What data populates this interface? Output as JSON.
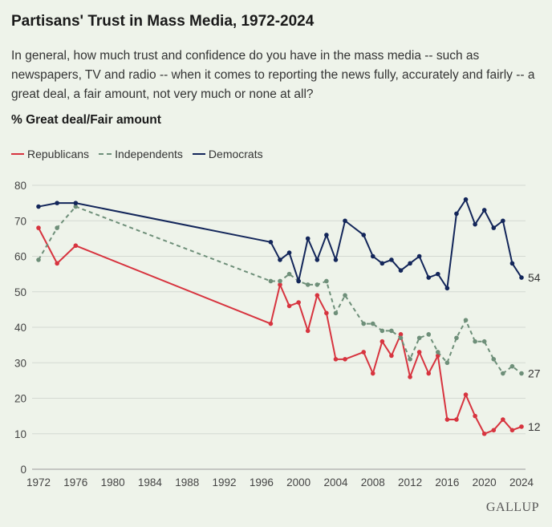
{
  "chart_data": {
    "type": "line",
    "title": "Partisans' Trust in Mass Media, 1972-2024",
    "subtitle": "In general, how much trust and confidence do you have in the mass media -- such as newspapers, TV and radio -- when it comes to reporting the news fully, accurately and fairly -- a great deal, a fair amount, not very much or none at all?",
    "ylabel": "% Great deal/Fair amount",
    "xlabel": "",
    "xlim": [
      1972,
      2024
    ],
    "ylim": [
      0,
      80
    ],
    "x_ticks": [
      1972,
      1976,
      1980,
      1984,
      1988,
      1992,
      1996,
      2000,
      2004,
      2008,
      2012,
      2016,
      2020,
      2024
    ],
    "y_ticks": [
      0,
      10,
      20,
      30,
      40,
      50,
      60,
      70,
      80
    ],
    "grid": true,
    "legend_position": "top-left",
    "series": [
      {
        "name": "Republicans",
        "color": "#d7343f",
        "style": "solid",
        "end_label": "12",
        "points": [
          [
            1972,
            68
          ],
          [
            1974,
            58
          ],
          [
            1976,
            63
          ],
          [
            1997,
            41
          ],
          [
            1998,
            52
          ],
          [
            1999,
            46
          ],
          [
            2000,
            47
          ],
          [
            2001,
            39
          ],
          [
            2002,
            49
          ],
          [
            2003,
            44
          ],
          [
            2004,
            31
          ],
          [
            2005,
            31
          ],
          [
            2007,
            33
          ],
          [
            2008,
            27
          ],
          [
            2009,
            36
          ],
          [
            2010,
            32
          ],
          [
            2011,
            38
          ],
          [
            2012,
            26
          ],
          [
            2013,
            33
          ],
          [
            2014,
            27
          ],
          [
            2015,
            32
          ],
          [
            2016,
            14
          ],
          [
            2017,
            14
          ],
          [
            2018,
            21
          ],
          [
            2019,
            15
          ],
          [
            2020,
            10
          ],
          [
            2021,
            11
          ],
          [
            2022,
            14
          ],
          [
            2023,
            11
          ],
          [
            2024,
            12
          ]
        ]
      },
      {
        "name": "Independents",
        "color": "#6e8f79",
        "style": "dashed",
        "end_label": "27",
        "points": [
          [
            1972,
            59
          ],
          [
            1974,
            68
          ],
          [
            1976,
            74
          ],
          [
            1997,
            53
          ],
          [
            1998,
            53
          ],
          [
            1999,
            55
          ],
          [
            2000,
            53
          ],
          [
            2001,
            52
          ],
          [
            2002,
            52
          ],
          [
            2003,
            53
          ],
          [
            2004,
            44
          ],
          [
            2005,
            49
          ],
          [
            2007,
            41
          ],
          [
            2008,
            41
          ],
          [
            2009,
            39
          ],
          [
            2010,
            39
          ],
          [
            2011,
            37
          ],
          [
            2012,
            31
          ],
          [
            2013,
            37
          ],
          [
            2014,
            38
          ],
          [
            2015,
            33
          ],
          [
            2016,
            30
          ],
          [
            2017,
            37
          ],
          [
            2018,
            42
          ],
          [
            2019,
            36
          ],
          [
            2020,
            36
          ],
          [
            2021,
            31
          ],
          [
            2022,
            27
          ],
          [
            2023,
            29
          ],
          [
            2024,
            27
          ]
        ]
      },
      {
        "name": "Democrats",
        "color": "#13265a",
        "style": "solid",
        "end_label": "54",
        "points": [
          [
            1972,
            74
          ],
          [
            1974,
            75
          ],
          [
            1976,
            75
          ],
          [
            1997,
            64
          ],
          [
            1998,
            59
          ],
          [
            1999,
            61
          ],
          [
            2000,
            53
          ],
          [
            2001,
            65
          ],
          [
            2002,
            59
          ],
          [
            2003,
            66
          ],
          [
            2004,
            59
          ],
          [
            2005,
            70
          ],
          [
            2007,
            66
          ],
          [
            2008,
            60
          ],
          [
            2009,
            58
          ],
          [
            2010,
            59
          ],
          [
            2011,
            56
          ],
          [
            2012,
            58
          ],
          [
            2013,
            60
          ],
          [
            2014,
            54
          ],
          [
            2015,
            55
          ],
          [
            2016,
            51
          ],
          [
            2017,
            72
          ],
          [
            2018,
            76
          ],
          [
            2019,
            69
          ],
          [
            2020,
            73
          ],
          [
            2021,
            68
          ],
          [
            2022,
            70
          ],
          [
            2023,
            58
          ],
          [
            2024,
            54
          ]
        ]
      }
    ]
  },
  "source": "GALLUP"
}
